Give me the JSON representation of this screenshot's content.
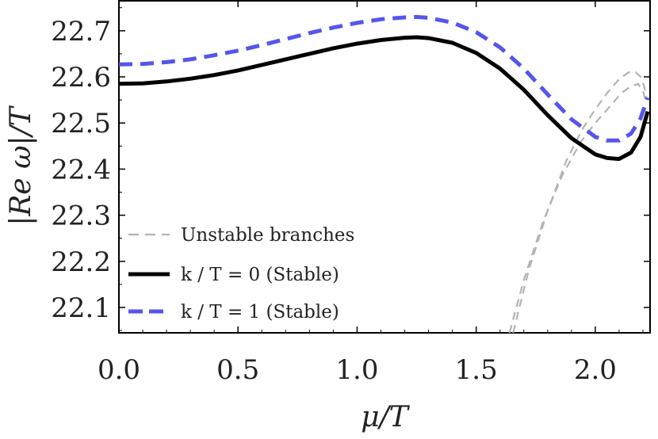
{
  "chart_data": {
    "type": "line",
    "xlabel": "μ/T",
    "ylabel": "|Re ω|/T",
    "xlim": [
      0,
      2.23
    ],
    "ylim": [
      22.045,
      22.765
    ],
    "x_ticks": [
      0.0,
      0.5,
      1.0,
      1.5,
      2.0
    ],
    "x_tick_labels": [
      "0.0",
      "0.5",
      "1.0",
      "1.5",
      "2.0"
    ],
    "y_ticks": [
      22.1,
      22.2,
      22.3,
      22.4,
      22.5,
      22.6,
      22.7
    ],
    "y_tick_labels": [
      "22.1",
      "22.2",
      "22.3",
      "22.4",
      "22.5",
      "22.6",
      "22.7"
    ],
    "legend_position": "bottom-left",
    "grid": false,
    "series": [
      {
        "name": "Unstable branches",
        "style": "dashed-thin",
        "color": "#b3b3b3",
        "x": [
          1.64,
          1.7,
          1.78,
          1.86,
          1.94,
          2.0,
          2.06,
          2.11,
          2.15,
          2.18,
          2.2,
          2.215
        ],
        "y": [
          22.045,
          22.16,
          22.285,
          22.385,
          22.46,
          22.5,
          22.535,
          22.565,
          22.58,
          22.585,
          22.57,
          22.54
        ]
      },
      {
        "name": "",
        "style": "dashed-thin",
        "color": "#b3b3b3",
        "x": [
          1.655,
          1.72,
          1.8,
          1.88,
          1.95,
          2.0,
          2.05,
          2.1,
          2.14,
          2.17,
          2.19,
          2.205,
          2.215
        ],
        "y": [
          22.045,
          22.18,
          22.31,
          22.42,
          22.49,
          22.53,
          22.565,
          22.595,
          22.61,
          22.61,
          22.6,
          22.58,
          22.55
        ]
      },
      {
        "name": "k / T = 0 (Stable)",
        "style": "solid",
        "color": "#000000",
        "x": [
          0,
          0.1,
          0.2,
          0.3,
          0.4,
          0.5,
          0.6,
          0.7,
          0.8,
          0.9,
          1.0,
          1.1,
          1.2,
          1.25,
          1.3,
          1.4,
          1.5,
          1.6,
          1.7,
          1.8,
          1.9,
          2.0,
          2.05,
          2.1,
          2.15,
          2.19,
          2.22
        ],
        "y": [
          22.585,
          22.586,
          22.59,
          22.596,
          22.604,
          22.614,
          22.626,
          22.638,
          22.65,
          22.662,
          22.672,
          22.68,
          22.685,
          22.686,
          22.684,
          22.674,
          22.652,
          22.618,
          22.572,
          22.517,
          22.467,
          22.432,
          22.424,
          22.422,
          22.436,
          22.47,
          22.525
        ]
      },
      {
        "name": "k / T = 1 (Stable)",
        "style": "dashed",
        "color": "#5555ee",
        "x": [
          0,
          0.1,
          0.2,
          0.3,
          0.4,
          0.5,
          0.6,
          0.7,
          0.8,
          0.9,
          1.0,
          1.1,
          1.2,
          1.25,
          1.3,
          1.4,
          1.5,
          1.6,
          1.7,
          1.8,
          1.9,
          2.0,
          2.05,
          2.1,
          2.15,
          2.19,
          2.22
        ],
        "y": [
          22.627,
          22.628,
          22.632,
          22.638,
          22.647,
          22.657,
          22.669,
          22.682,
          22.695,
          22.707,
          22.717,
          22.725,
          22.729,
          22.73,
          22.728,
          22.718,
          22.697,
          22.664,
          22.618,
          22.562,
          22.508,
          22.47,
          22.462,
          22.462,
          22.477,
          22.51,
          22.555
        ]
      }
    ]
  }
}
